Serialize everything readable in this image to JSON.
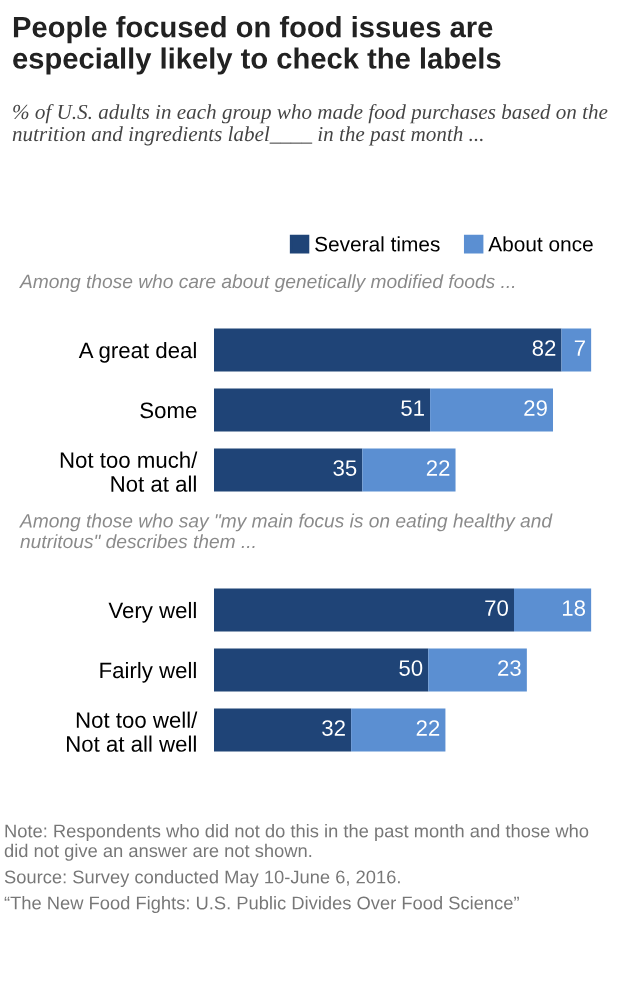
{
  "chart_data": [
    {
      "type": "bar",
      "orientation": "horizontal",
      "stacked": true,
      "data_labels": true,
      "legend": "top",
      "tick_labels": "y",
      "title": "People focused on food issues are especially likely to check the labels",
      "subtitle": "% of U.S. adults in each group who made food purchases based on the nutrition and ingredients label____ in the past month ...",
      "annotations": [
        "Among those who care about genetically modified foods ..."
      ],
      "categories": [
        "A great deal",
        "Some",
        "Not too much/\nNot at all"
      ],
      "series": [
        {
          "name": "Several times",
          "color": "#1f4477",
          "values": [
            82,
            51,
            35
          ]
        },
        {
          "name": "About once",
          "color": "#5b8fd2",
          "values": [
            7,
            29,
            22
          ]
        }
      ]
    },
    {
      "type": "bar",
      "orientation": "horizontal",
      "stacked": true,
      "data_labels": true,
      "tick_labels": "y",
      "annotations": [
        "Among those who say \"my main focus is on eating healthy and nutritous\" describes them ...",
        "Note: Respondents who did not do this in the past month and those who did not give an answer are not shown.",
        "Source: Survey conducted May 10-June 6, 2016.",
        "“The New Food Fights: U.S. Public Divides Over Food Science”"
      ],
      "categories": [
        "Very well",
        "Fairly well",
        "Not too well/\nNot at all well"
      ],
      "series": [
        {
          "color": "#1f4477",
          "values": [
            70,
            50,
            32
          ]
        },
        {
          "color": "#5b8fd2",
          "values": [
            18,
            23,
            22
          ]
        }
      ]
    }
  ]
}
